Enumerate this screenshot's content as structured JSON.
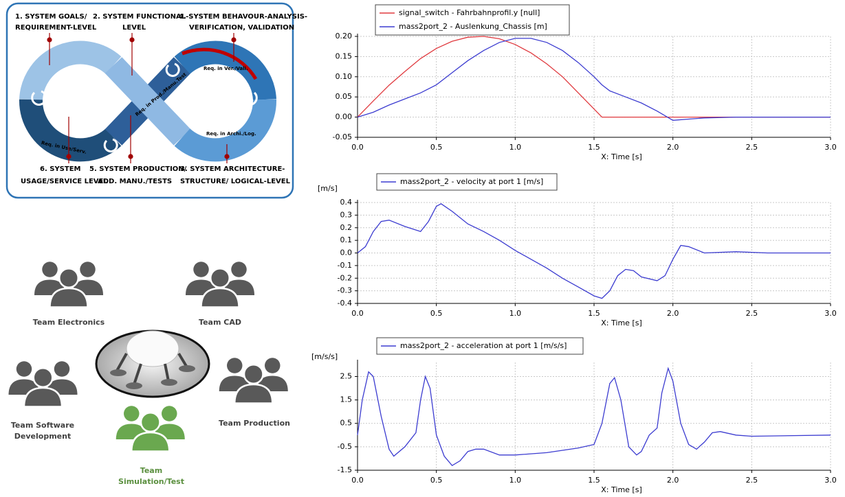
{
  "chart_data": [
    {
      "type": "line",
      "xlabel": "X: Time [s]",
      "x": [
        0,
        0.1,
        0.2,
        0.3,
        0.4,
        0.5,
        0.6,
        0.7,
        0.8,
        0.9,
        1.0,
        1.1,
        1.2,
        1.3,
        1.4,
        1.5,
        1.55,
        1.6,
        1.7,
        1.8,
        1.9,
        2.0,
        2.1,
        2.2,
        2.4,
        2.6,
        2.8,
        3.0
      ],
      "series": [
        {
          "name": "signal_switch - Fahrbahnprofil.y [null]",
          "color": "#e0393e",
          "values": [
            0,
            0.04,
            0.079,
            0.113,
            0.145,
            0.17,
            0.188,
            0.198,
            0.2,
            0.194,
            0.18,
            0.159,
            0.132,
            0.1,
            0.06,
            0.02,
            0,
            0,
            0,
            0,
            0,
            0,
            0,
            0,
            0,
            0,
            0,
            0
          ]
        },
        {
          "name": "mass2port_2 - Auslenkung_Chassis [m]",
          "color": "#3b3bd0",
          "values": [
            0,
            0.012,
            0.03,
            0.045,
            0.06,
            0.08,
            0.11,
            0.14,
            0.165,
            0.185,
            0.195,
            0.195,
            0.185,
            0.165,
            0.135,
            0.1,
            0.08,
            0.065,
            0.05,
            0.035,
            0.015,
            -0.008,
            -0.005,
            -0.002,
            0,
            0,
            0,
            0
          ]
        }
      ],
      "xlim": [
        0,
        3
      ],
      "xticks": [
        {
          "value": 0,
          "label": "0.0"
        },
        0.5,
        {
          "value": 1,
          "label": "1.0"
        },
        1.5,
        {
          "value": 2,
          "label": "2.0"
        },
        2.5,
        {
          "value": 3,
          "label": "3.0"
        }
      ],
      "ylim": [
        -0.05,
        0.2
      ],
      "yticks": [
        {
          "value": 0.2,
          "label": "0.20"
        },
        0.15,
        {
          "value": 0.1,
          "label": "0.10"
        },
        0.05,
        {
          "value": 0,
          "label": "0.00"
        },
        -0.05
      ],
      "grid": true
    },
    {
      "type": "line",
      "xlabel": "X: Time [s]",
      "y_unit": "[m/s]",
      "x": [
        0,
        0.05,
        0.1,
        0.15,
        0.2,
        0.3,
        0.4,
        0.45,
        0.5,
        0.53,
        0.6,
        0.7,
        0.8,
        0.9,
        1.0,
        1.1,
        1.2,
        1.3,
        1.4,
        1.5,
        1.55,
        1.6,
        1.65,
        1.7,
        1.75,
        1.8,
        1.9,
        1.95,
        2.0,
        2.05,
        2.1,
        2.2,
        2.4,
        2.6,
        3.0
      ],
      "series": [
        {
          "name": "mass2port_2 - velocity at port 1 [m/s]",
          "color": "#3b3bd0",
          "values": [
            0,
            0.05,
            0.17,
            0.25,
            0.26,
            0.21,
            0.17,
            0.25,
            0.37,
            0.39,
            0.33,
            0.23,
            0.17,
            0.1,
            0.02,
            -0.05,
            -0.12,
            -0.2,
            -0.27,
            -0.34,
            -0.36,
            -0.3,
            -0.18,
            -0.13,
            -0.14,
            -0.19,
            -0.22,
            -0.18,
            -0.05,
            0.06,
            0.05,
            0,
            0.01,
            0,
            0
          ]
        }
      ],
      "xlim": [
        0,
        3
      ],
      "xticks": [
        {
          "value": 0,
          "label": "0.0"
        },
        0.5,
        {
          "value": 1,
          "label": "1.0"
        },
        1.5,
        {
          "value": 2,
          "label": "2.0"
        },
        2.5,
        {
          "value": 3,
          "label": "3.0"
        }
      ],
      "ylim": [
        -0.4,
        0.4
      ],
      "yticks": [
        0.4,
        0.3,
        0.2,
        0.1,
        {
          "value": 0,
          "label": "0.0"
        },
        -0.1,
        -0.2,
        -0.3,
        -0.4
      ],
      "grid": true
    },
    {
      "type": "line",
      "xlabel": "X: Time [s]",
      "y_unit": "[m/s/s]",
      "x": [
        0,
        0.03,
        0.07,
        0.1,
        0.15,
        0.2,
        0.23,
        0.3,
        0.37,
        0.4,
        0.43,
        0.46,
        0.5,
        0.55,
        0.6,
        0.65,
        0.7,
        0.75,
        0.8,
        0.9,
        1.0,
        1.2,
        1.4,
        1.5,
        1.55,
        1.6,
        1.63,
        1.67,
        1.72,
        1.77,
        1.8,
        1.85,
        1.9,
        1.93,
        1.97,
        2.0,
        2.05,
        2.1,
        2.15,
        2.2,
        2.25,
        2.3,
        2.4,
        2.5,
        3.0
      ],
      "series": [
        {
          "name": "mass2port_2 - acceleration at port 1 [m/s/s]",
          "color": "#3b3bd0",
          "values": [
            0,
            1.5,
            2.7,
            2.5,
            0.8,
            -0.6,
            -0.9,
            -0.5,
            0.1,
            1.5,
            2.5,
            2.0,
            0,
            -0.9,
            -1.3,
            -1.1,
            -0.7,
            -0.6,
            -0.6,
            -0.85,
            -0.85,
            -0.75,
            -0.55,
            -0.4,
            0.5,
            2.2,
            2.45,
            1.5,
            -0.5,
            -0.85,
            -0.7,
            0,
            0.3,
            1.8,
            2.85,
            2.3,
            0.5,
            -0.4,
            -0.6,
            -0.3,
            0.1,
            0.15,
            0,
            -0.05,
            0
          ]
        }
      ],
      "xlim": [
        0,
        3
      ],
      "xticks": [
        {
          "value": 0,
          "label": "0.0"
        },
        0.5,
        {
          "value": 1,
          "label": "1.0"
        },
        1.5,
        {
          "value": 2,
          "label": "2.0"
        },
        2.5,
        {
          "value": 3,
          "label": "3.0"
        }
      ],
      "ylim": [
        -1.5,
        3.1
      ],
      "yticks": [
        2.5,
        1.5,
        0.5,
        -0.5,
        -1.5
      ],
      "grid": true
    }
  ],
  "diagram": {
    "labels": [
      {
        "lines": [
          "1. SYSTEM GOALS/",
          "REQUIREMENT-LEVEL"
        ]
      },
      {
        "lines": [
          "2. SYSTEM FUNCTIONAL-",
          "LEVEL"
        ]
      },
      {
        "lines": [
          "4. SYSTEM BEHAVOUR-ANALYSIS-",
          "VERIFICATION, VALIDATION"
        ]
      },
      {
        "lines": [
          "6. SYSTEM",
          "USAGE/SERVICE LEVEL"
        ]
      },
      {
        "lines": [
          "5. SYSTEM PRODUCTION/",
          "ADD. MANU./TESTS"
        ]
      },
      {
        "lines": [
          "3. SYSTEM ARCHITECTURE-",
          "STRUCTURE/ LOGICAL-LEVEL"
        ]
      }
    ],
    "segment_labels": [
      "Req. in Ver./Vali.",
      "Req. in Archi./Log.",
      "Req. in Prod./Manu.Test",
      "Req. in Use/Serv."
    ]
  },
  "teams": [
    {
      "lines": [
        "Team Electronics"
      ]
    },
    {
      "lines": [
        "Team CAD"
      ]
    },
    {
      "lines": [
        "Team Software",
        "Development"
      ]
    },
    {
      "lines": [
        "Team Production"
      ]
    },
    {
      "lines": [
        "Team",
        "Simulation/Test"
      ]
    }
  ]
}
